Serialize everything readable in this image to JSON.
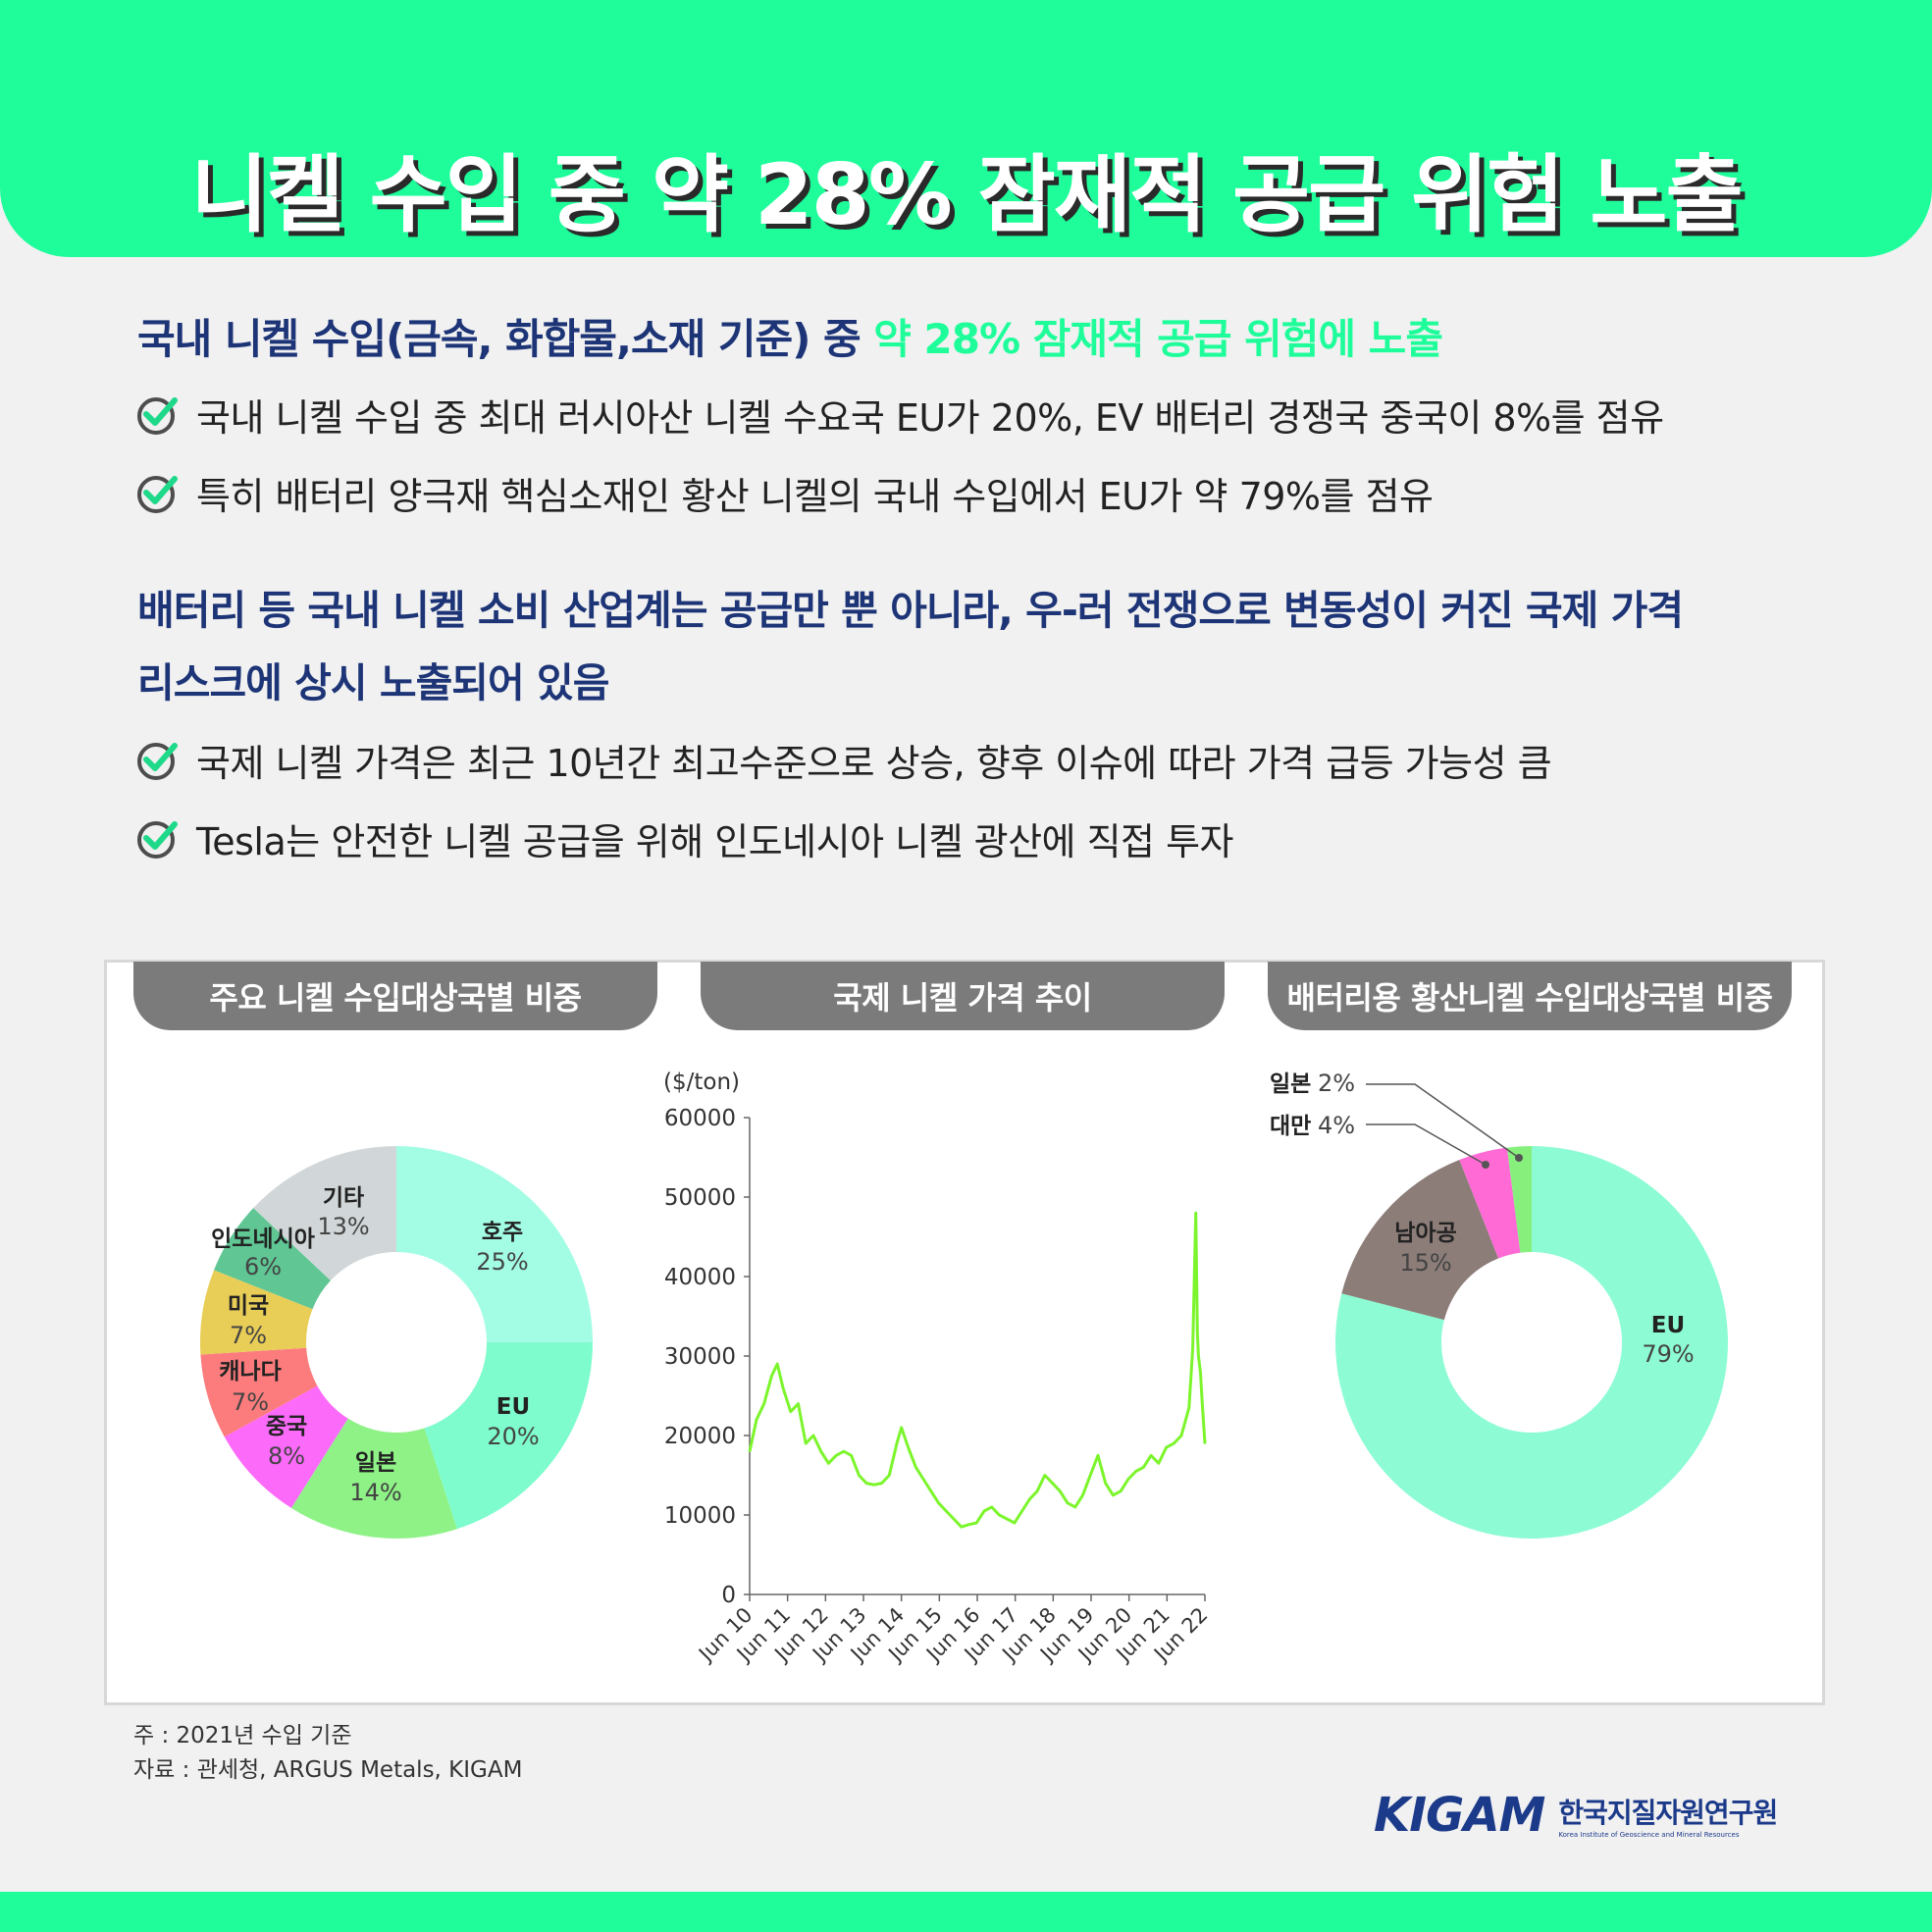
{
  "title": "니켈 수입 중 약 28% 잠재적 공급 위험 노출",
  "section1": {
    "heading_main": "국내 니켈 수입(금속, 화합물,소재 기준) 중 ",
    "heading_highlight": "약 28% 잠재적 공급 위험에 노출",
    "bullets": [
      "국내 니켈 수입 중 최대 러시아산 니켈 수요국 EU가 20%, EV 배터리 경쟁국 중국이 8%를 점유",
      "특히 배터리 양극재 핵심소재인 황산 니켈의 국내 수입에서 EU가 약 79%를 점유"
    ]
  },
  "section2": {
    "heading_line1": "배터리 등 국내 니켈 소비 산업계는 공급만 뿐 아니라, 우-러 전쟁으로 변동성이 커진 국제 가격",
    "heading_line2": "리스크에 상시 노출되어 있음",
    "bullets": [
      "국제 니켈 가격은 최근 10년간 최고수준으로 상승, 향후 이슈에 따라 가격 급등 가능성 큼",
      "Tesla는 안전한 니켈 공급을 위해 인도네시아 니켈 광산에 직접 투자"
    ]
  },
  "chart_tabs": [
    "주요 니켈 수입대상국별 비중",
    "국제 니켈 가격 추이",
    "배터리용 황산니켈 수입대상국별 비중"
  ],
  "chart_data": [
    {
      "type": "pie",
      "title": "주요 니켈 수입대상국별 비중",
      "slices": [
        {
          "label": "호주",
          "value": 25,
          "text": "25%",
          "color": "#a2fde4"
        },
        {
          "label": "EU",
          "value": 20,
          "text": "20%",
          "color": "#7efccd"
        },
        {
          "label": "일본",
          "value": 14,
          "text": "14%",
          "color": "#8ef286"
        },
        {
          "label": "중국",
          "value": 8,
          "text": "8%",
          "color": "#fc6afa"
        },
        {
          "label": "캐나다",
          "value": 7,
          "text": "7%",
          "color": "#fc7c7d"
        },
        {
          "label": "미국",
          "value": 7,
          "text": "7%",
          "color": "#e8cd57"
        },
        {
          "label": "인도네시아",
          "value": 6,
          "text": "6%",
          "color": "#5fc694"
        },
        {
          "label": "기타",
          "value": 13,
          "text": "13%",
          "color": "#d1d7d8"
        }
      ]
    },
    {
      "type": "line",
      "title": "국제 니켈 가격 추이",
      "ylabel": "($/ton)",
      "ylim": [
        0,
        60000
      ],
      "yticks": [
        0,
        10000,
        20000,
        30000,
        40000,
        50000,
        60000
      ],
      "xticks": [
        "Jun 10",
        "Jun 11",
        "Jun 12",
        "Jun 13",
        "Jun 14",
        "Jun 15",
        "Jun 16",
        "Jun 17",
        "Jun 18",
        "Jun 19",
        "Jun 20",
        "Jun 21",
        "Jun 22"
      ],
      "color": "#7cf52c",
      "series": [
        {
          "x": [
            2010.42,
            2010.6,
            2010.8,
            2011.0,
            2011.15,
            2011.3,
            2011.5,
            2011.7,
            2011.9,
            2012.1,
            2012.3,
            2012.5,
            2012.7,
            2012.9,
            2013.1,
            2013.3,
            2013.5,
            2013.7,
            2013.9,
            2014.1,
            2014.3,
            2014.42,
            2014.6,
            2014.8,
            2015.0,
            2015.2,
            2015.4,
            2015.6,
            2015.8,
            2016.0,
            2016.2,
            2016.4,
            2016.6,
            2016.8,
            2017.0,
            2017.2,
            2017.4,
            2017.6,
            2017.8,
            2018.0,
            2018.2,
            2018.4,
            2018.6,
            2018.8,
            2019.0,
            2019.2,
            2019.4,
            2019.6,
            2019.8,
            2020.0,
            2020.2,
            2020.4,
            2020.6,
            2020.8,
            2021.0,
            2021.2,
            2021.4,
            2021.6,
            2021.8,
            2022.0,
            2022.1,
            2022.18,
            2022.22,
            2022.25,
            2022.3,
            2022.35,
            2022.42
          ],
          "y": [
            18000,
            22000,
            24000,
            27500,
            29000,
            26000,
            23000,
            24000,
            19000,
            20000,
            18000,
            16500,
            17500,
            18000,
            17500,
            15000,
            14000,
            13800,
            14000,
            15000,
            19000,
            21000,
            18500,
            16000,
            14500,
            13000,
            11500,
            10500,
            9500,
            8500,
            8800,
            9000,
            10500,
            11000,
            10000,
            9500,
            9000,
            10500,
            12000,
            13000,
            15000,
            14000,
            13000,
            11500,
            11000,
            12500,
            15000,
            17500,
            14000,
            12500,
            13000,
            14500,
            15500,
            16000,
            17500,
            16500,
            18500,
            19000,
            20000,
            23500,
            31000,
            48000,
            33000,
            30000,
            28000,
            24000,
            19000
          ]
        }
      ]
    },
    {
      "type": "pie",
      "title": "배터리용 황산니켈 수입대상국별 비중",
      "slices": [
        {
          "label": "EU",
          "value": 79,
          "text": "79%",
          "color": "#8dfcd4"
        },
        {
          "label": "남아공",
          "value": 15,
          "text": "15%",
          "color": "#8c7d79"
        },
        {
          "label": "대만",
          "value": 4,
          "text": "4%",
          "color": "#ff6ad5"
        },
        {
          "label": "일본",
          "value": 2,
          "text": "2%",
          "color": "#87f07d"
        }
      ]
    }
  ],
  "notes": [
    "주 : 2021년 수입 기준",
    "자료 : 관세청, ARGUS Metals, KIGAM"
  ],
  "logo": {
    "word": "KIGAM",
    "korean": "한국지질자원연구원",
    "english": "Korea Institute of Geoscience and Mineral Resources"
  },
  "colors": {
    "accent": "#1ffd9b",
    "heading": "#1d3577",
    "tab": "#7b7b7b"
  }
}
